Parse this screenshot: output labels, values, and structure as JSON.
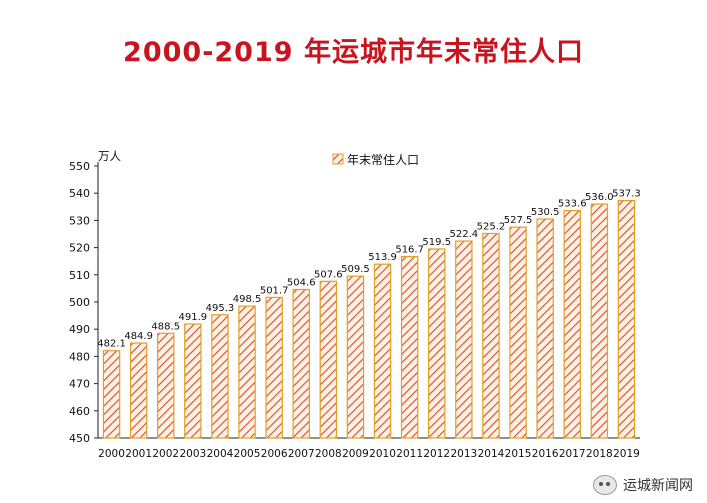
{
  "chart_data": {
    "type": "bar",
    "title": "2000-2019 年运城市年末常住人口",
    "unit_label": "万人",
    "legend": {
      "entries": [
        "年末常住人口"
      ],
      "placement": "top-center"
    },
    "categories": [
      "2000",
      "2001",
      "2002",
      "2003",
      "2004",
      "2005",
      "2006",
      "2007",
      "2008",
      "2009",
      "2010",
      "2011",
      "2012",
      "2013",
      "2014",
      "2015",
      "2016",
      "2017",
      "2018",
      "2019"
    ],
    "values": [
      482.1,
      484.9,
      488.5,
      491.9,
      495.3,
      498.5,
      501.7,
      504.6,
      507.6,
      509.5,
      513.9,
      516.7,
      519.5,
      522.4,
      525.2,
      527.5,
      530.5,
      533.6,
      536.0,
      537.3
    ],
    "value_labels": [
      "482.1",
      "484.9",
      "488.5",
      "491.9",
      "495.3",
      "498.5",
      "501.7",
      "504.6",
      "507.6",
      "509.5",
      "513.9",
      "516.7",
      "519.5",
      "522.4",
      "525.2",
      "527.5",
      "530.5",
      "533.6",
      "536.0",
      "537.3"
    ],
    "ylim": [
      450,
      550
    ],
    "yticks": [
      450,
      460,
      470,
      480,
      490,
      500,
      510,
      520,
      530,
      540,
      550
    ],
    "grid": false,
    "colors": {
      "bar_border": "#e0a020",
      "hatch": "#e05040",
      "title": "#c8141e"
    }
  },
  "watermark": {
    "text": "运城新闻网",
    "icon": "wechat-icon"
  }
}
